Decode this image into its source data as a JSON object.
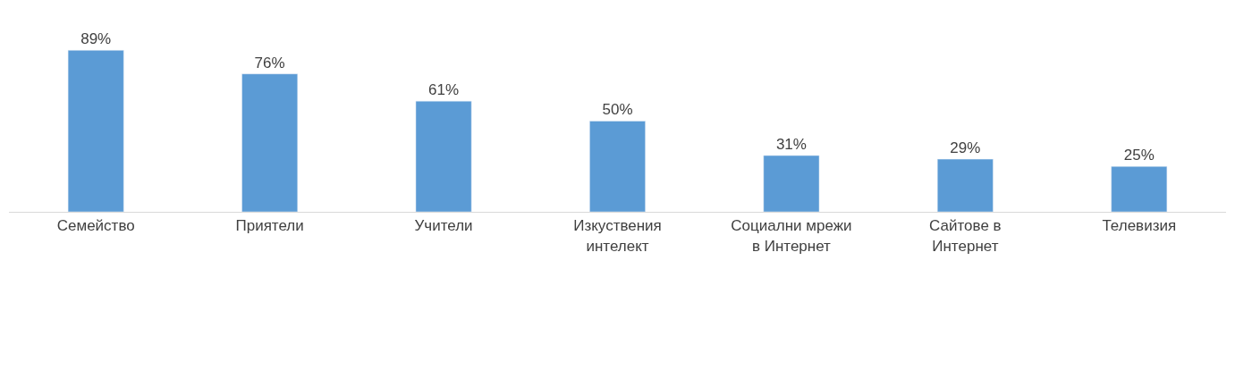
{
  "chart_data": {
    "type": "bar",
    "categories": [
      "Семейство",
      "Приятели",
      "Учители",
      "Изкуствения интелект",
      "Социални мрежи в Интернет",
      "Сайтове в Интернет",
      "Телевизия"
    ],
    "values": [
      89,
      76,
      61,
      50,
      31,
      29,
      25
    ],
    "value_labels": [
      "89%",
      "76%",
      "61%",
      "50%",
      "31%",
      "29%",
      "25%"
    ],
    "color": "#5b9bd5",
    "legend": false
  }
}
